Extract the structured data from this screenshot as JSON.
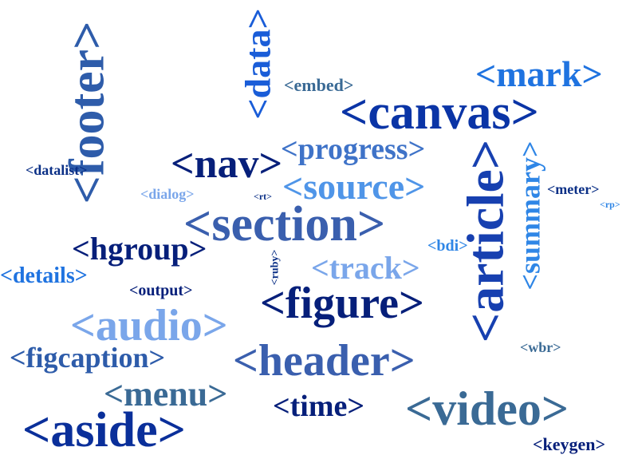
{
  "words": [
    {
      "text": "<data>",
      "color": "#1a5dd8",
      "key": "data"
    },
    {
      "text": "<footer>",
      "color": "#2e5caa",
      "key": "footer"
    },
    {
      "text": "<embed>",
      "color": "#3a6a95",
      "key": "embed"
    },
    {
      "text": "<mark>",
      "color": "#1f73e0",
      "key": "mark"
    },
    {
      "text": "<canvas>",
      "color": "#0a34a6",
      "key": "canvas"
    },
    {
      "text": "<progress>",
      "color": "#3f73c8",
      "key": "progress"
    },
    {
      "text": "<datalist>",
      "color": "#0a2f86",
      "key": "datalist"
    },
    {
      "text": "<nav>",
      "color": "#061f7a",
      "key": "nav"
    },
    {
      "text": "<source>",
      "color": "#4f95e8",
      "key": "source"
    },
    {
      "text": "<article>",
      "color": "#1740b0",
      "key": "article"
    },
    {
      "text": "<summary>",
      "color": "#2f86e6",
      "key": "summary"
    },
    {
      "text": "<dialog>",
      "color": "#7aa6ea",
      "key": "dialog"
    },
    {
      "text": "<rt>",
      "color": "#0a2f86",
      "key": "rt"
    },
    {
      "text": "<meter>",
      "color": "#0a2f86",
      "key": "meter"
    },
    {
      "text": "<rp>",
      "color": "#2f86e6",
      "key": "rp"
    },
    {
      "text": "<section>",
      "color": "#3a5fae",
      "key": "section"
    },
    {
      "text": "<hgroup>",
      "color": "#061f7a",
      "key": "hgroup"
    },
    {
      "text": "<bdi>",
      "color": "#2f86e6",
      "key": "bdi"
    },
    {
      "text": "<ruby>",
      "color": "#0a2f86",
      "key": "ruby"
    },
    {
      "text": "<details>",
      "color": "#1f73e0",
      "key": "details"
    },
    {
      "text": "<track>",
      "color": "#7aa6ea",
      "key": "track"
    },
    {
      "text": "<output>",
      "color": "#061f7a",
      "key": "output"
    },
    {
      "text": "<figure>",
      "color": "#061f7a",
      "key": "figure"
    },
    {
      "text": "<audio>",
      "color": "#7aa6ea",
      "key": "audio"
    },
    {
      "text": "<wbr>",
      "color": "#3a6a95",
      "key": "wbr"
    },
    {
      "text": "<figcaption>",
      "color": "#2e5caa",
      "key": "figcaption"
    },
    {
      "text": "<header>",
      "color": "#3a5fae",
      "key": "header"
    },
    {
      "text": "<menu>",
      "color": "#3a6a95",
      "key": "menu"
    },
    {
      "text": "<time>",
      "color": "#061f7a",
      "key": "time"
    },
    {
      "text": "<video>",
      "color": "#3a6a95",
      "key": "video"
    },
    {
      "text": "<aside>",
      "color": "#0a2f9a",
      "key": "aside"
    },
    {
      "text": "<keygen>",
      "color": "#061f7a",
      "key": "keygen"
    }
  ]
}
